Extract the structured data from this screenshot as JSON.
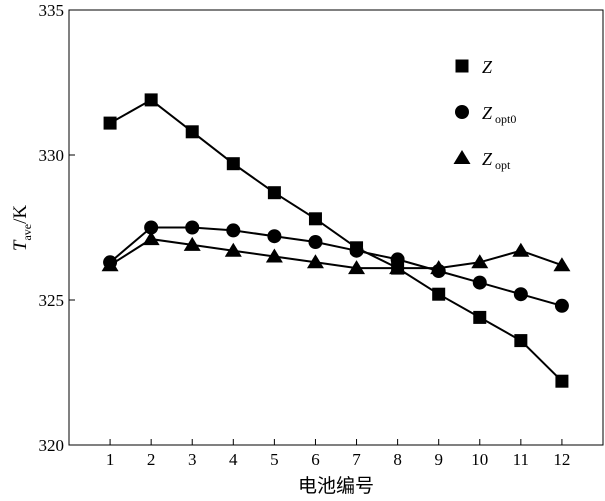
{
  "chart_data": {
    "type": "line",
    "title": "",
    "xlabel": "电池编号",
    "ylabel": {
      "main": "T",
      "sub": "ave",
      "unit": "/K"
    },
    "categories": [
      "1",
      "2",
      "3",
      "4",
      "5",
      "6",
      "7",
      "8",
      "9",
      "10",
      "11",
      "12"
    ],
    "xlim": [
      0,
      13
    ],
    "ylim": [
      320,
      335
    ],
    "yticks": [
      "320",
      "325",
      "330",
      "335"
    ],
    "legend_position": "top-right",
    "series": [
      {
        "name": "Z",
        "sub": "",
        "marker": "square",
        "values": [
          331.1,
          331.9,
          330.8,
          329.7,
          328.7,
          327.8,
          326.8,
          326.1,
          325.2,
          324.4,
          323.6,
          322.2
        ]
      },
      {
        "name": "Z",
        "sub": "opt0",
        "marker": "circle",
        "values": [
          326.3,
          327.5,
          327.5,
          327.4,
          327.2,
          327.0,
          326.7,
          326.4,
          326.0,
          325.6,
          325.2,
          324.8
        ]
      },
      {
        "name": "Z",
        "sub": "opt",
        "marker": "triangle",
        "values": [
          326.2,
          327.1,
          326.9,
          326.7,
          326.5,
          326.3,
          326.1,
          326.1,
          326.1,
          326.3,
          326.7,
          326.2
        ]
      }
    ]
  }
}
